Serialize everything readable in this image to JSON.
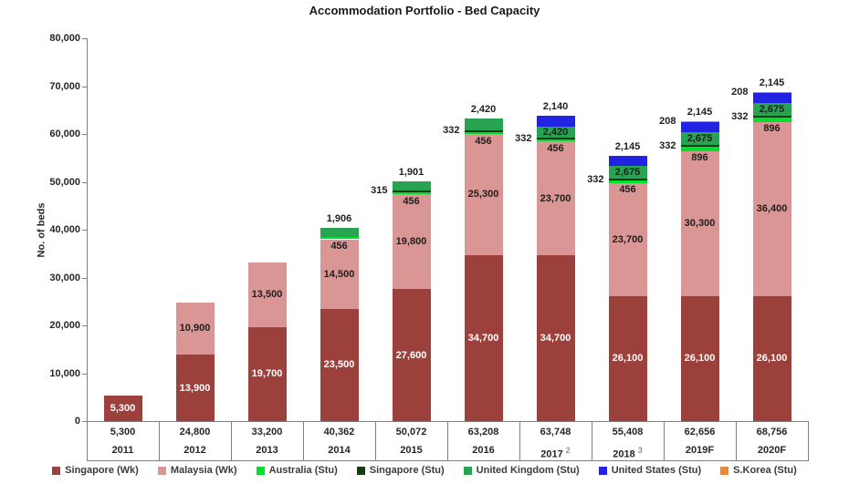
{
  "title": "Accommodation Portfolio - Bed Capacity",
  "y_axis": {
    "label": "No. of beds",
    "ticks": [
      "80,000",
      "70,000",
      "60,000",
      "50,000",
      "40,000",
      "30,000",
      "20,000",
      "10,000",
      "0"
    ]
  },
  "chart_data": {
    "type": "bar",
    "stacked": true,
    "title": "Accommodation Portfolio - Bed Capacity",
    "ylabel": "No. of beds",
    "ylim": [
      0,
      80000
    ],
    "grid": false,
    "legend_position": "bottom",
    "categories": [
      "2011",
      "2012",
      "2013",
      "2014",
      "2015",
      "2016",
      "2017",
      "2018",
      "2019F",
      "2020F"
    ],
    "category_superscripts": [
      "",
      "",
      "",
      "",
      "",
      "",
      "2",
      "3",
      "",
      ""
    ],
    "totals": [
      "5,300",
      "24,800",
      "33,200",
      "40,362",
      "50,072",
      "63,208",
      "63,748",
      "55,408",
      "62,656",
      "68,756"
    ],
    "series": [
      {
        "name": "Singapore (Wk)",
        "color": "#9c403b",
        "label_style": "inside-light",
        "values": [
          5300,
          13900,
          19700,
          23500,
          27600,
          34700,
          34700,
          26100,
          26100,
          26100
        ]
      },
      {
        "name": "Malaysia (Wk)",
        "color": "#d99694",
        "label_style": "inside-dark",
        "values": [
          0,
          10900,
          13500,
          14500,
          19800,
          25300,
          23700,
          23700,
          30300,
          36400
        ]
      },
      {
        "name": "Australia (Stu)",
        "color": "#00df2e",
        "label_style": "below-stripe",
        "values": [
          0,
          0,
          0,
          456,
          456,
          456,
          456,
          456,
          896,
          896
        ]
      },
      {
        "name": "Singapore (Stu)",
        "color": "#123c12",
        "label_style": "left",
        "values": [
          0,
          0,
          0,
          0,
          315,
          332,
          332,
          332,
          332,
          332
        ]
      },
      {
        "name": "United Kingdom (Stu)",
        "color": "#27a352",
        "label_style": "inside-or-above",
        "values": [
          0,
          0,
          0,
          1906,
          1901,
          2420,
          2420,
          2675,
          2675,
          2675
        ]
      },
      {
        "name": "United States (Stu)",
        "color": "#2222e2",
        "label_style": "above",
        "values": [
          0,
          0,
          0,
          0,
          0,
          0,
          2140,
          2145,
          2145,
          2145
        ]
      },
      {
        "name": "S.Korea (Stu)",
        "color": "#ec8630",
        "label_style": "left",
        "values": [
          0,
          0,
          0,
          0,
          0,
          0,
          0,
          0,
          208,
          208
        ]
      }
    ]
  }
}
